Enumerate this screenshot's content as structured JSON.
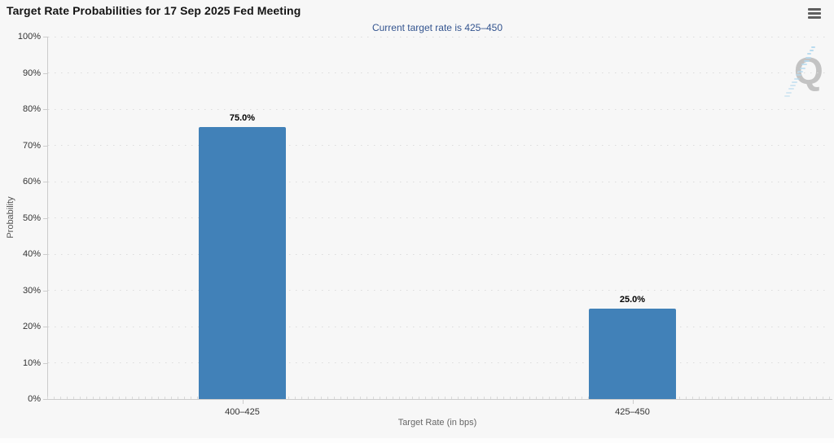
{
  "chart_data": {
    "type": "bar",
    "title": "Target Rate Probabilities for 17 Sep 2025 Fed Meeting",
    "subtitle": "Current target rate is 425–450",
    "categories": [
      "400–425",
      "425–450"
    ],
    "values": [
      75.0,
      25.0
    ],
    "value_labels": [
      "75.0%",
      "25.0%"
    ],
    "xlabel": "Target Rate (in bps)",
    "ylabel": "Probability",
    "ylim": [
      0,
      100
    ],
    "ytick_step": 10,
    "ytick_labels": [
      "0%",
      "10%",
      "20%",
      "30%",
      "40%",
      "50%",
      "60%",
      "70%",
      "80%",
      "90%",
      "100%"
    ],
    "grid": "horizontal-dotted",
    "legend": "none",
    "bar_color": "#4181b8",
    "subtitle_color": "#33548f"
  },
  "header": {
    "menu_icon": "hamburger-menu-icon"
  },
  "watermark": {
    "letter": "Q",
    "letter_color": "#c3c3c3",
    "swoosh_color": "#b5d9ee"
  }
}
